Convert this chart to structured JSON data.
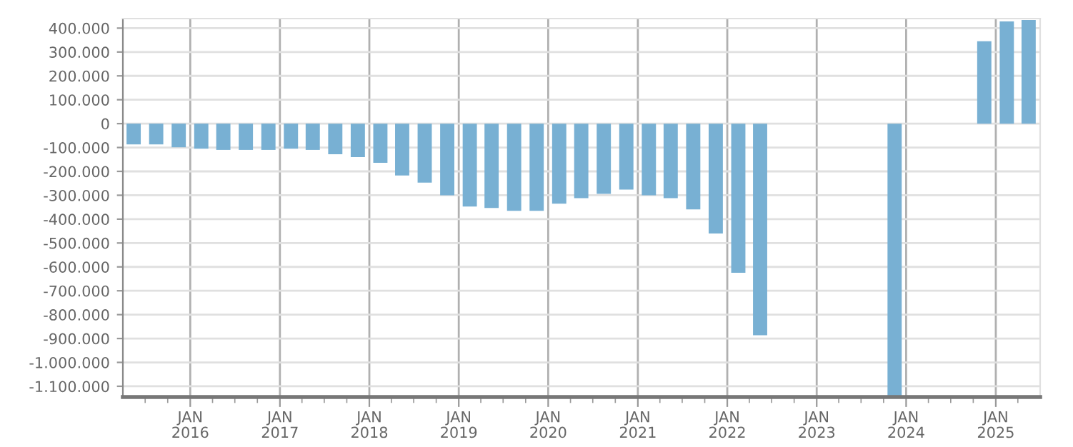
{
  "chart_data": {
    "type": "bar",
    "color": "#78b0d3",
    "grid": true,
    "x": [
      "2015-05-15",
      "2015-08-15",
      "2015-11-15",
      "2016-02-15",
      "2016-05-15",
      "2016-08-15",
      "2016-11-15",
      "2017-02-15",
      "2017-05-15",
      "2017-08-15",
      "2017-11-15",
      "2018-02-15",
      "2018-05-15",
      "2018-08-15",
      "2018-11-15",
      "2019-02-15",
      "2019-05-15",
      "2019-08-15",
      "2019-11-15",
      "2020-02-15",
      "2020-05-15",
      "2020-08-15",
      "2020-11-15",
      "2021-02-15",
      "2021-05-15",
      "2021-08-15",
      "2021-11-15",
      "2022-02-15",
      "2022-05-15",
      "2023-11-15",
      "2024-11-15",
      "2025-02-15",
      "2025-05-15"
    ],
    "values": [
      -87000,
      -87000,
      -99000,
      -105000,
      -110000,
      -110000,
      -110000,
      -105000,
      -110000,
      -128000,
      -140000,
      -164000,
      -217000,
      -247000,
      -300000,
      -347000,
      -353000,
      -365000,
      -365000,
      -335000,
      -312000,
      -294000,
      -276000,
      -300000,
      -312000,
      -359000,
      -460000,
      -625000,
      -886000,
      -1145000,
      345000,
      428000,
      434000
    ],
    "xlim": [
      "2015-04-01",
      "2025-07-01"
    ],
    "ylim": [
      -1145000,
      440000
    ],
    "xticks": [
      {
        "value": "2016-01-01",
        "label": "JAN\n2016"
      },
      {
        "value": "2017-01-01",
        "label": "JAN\n2017"
      },
      {
        "value": "2018-01-01",
        "label": "JAN\n2018"
      },
      {
        "value": "2019-01-01",
        "label": "JAN\n2019"
      },
      {
        "value": "2020-01-01",
        "label": "JAN\n2020"
      },
      {
        "value": "2021-01-01",
        "label": "JAN\n2021"
      },
      {
        "value": "2022-01-01",
        "label": "JAN\n2022"
      },
      {
        "value": "2023-01-01",
        "label": "JAN\n2023"
      },
      {
        "value": "2024-01-01",
        "label": "JAN\n2024"
      },
      {
        "value": "2025-01-01",
        "label": "JAN\n2025"
      },
      {
        "value": "2015-07-01",
        "label": null
      },
      {
        "value": "2015-10-01",
        "label": null
      },
      {
        "value": "2016-04-01",
        "label": null
      },
      {
        "value": "2016-07-01",
        "label": null
      },
      {
        "value": "2016-10-01",
        "label": null
      },
      {
        "value": "2017-04-01",
        "label": null
      },
      {
        "value": "2017-07-01",
        "label": null
      },
      {
        "value": "2017-10-01",
        "label": null
      },
      {
        "value": "2018-04-01",
        "label": null
      },
      {
        "value": "2018-07-01",
        "label": null
      },
      {
        "value": "2018-10-01",
        "label": null
      },
      {
        "value": "2019-04-01",
        "label": null
      },
      {
        "value": "2019-07-01",
        "label": null
      },
      {
        "value": "2019-10-01",
        "label": null
      },
      {
        "value": "2020-04-01",
        "label": null
      },
      {
        "value": "2020-07-01",
        "label": null
      },
      {
        "value": "2020-10-01",
        "label": null
      },
      {
        "value": "2021-04-01",
        "label": null
      },
      {
        "value": "2021-07-01",
        "label": null
      },
      {
        "value": "2021-10-01",
        "label": null
      },
      {
        "value": "2022-04-01",
        "label": null
      },
      {
        "value": "2022-07-01",
        "label": null
      },
      {
        "value": "2022-10-01",
        "label": null
      },
      {
        "value": "2023-04-01",
        "label": null
      },
      {
        "value": "2023-07-01",
        "label": null
      },
      {
        "value": "2023-10-01",
        "label": null
      },
      {
        "value": "2024-04-01",
        "label": null
      },
      {
        "value": "2024-07-01",
        "label": null
      },
      {
        "value": "2024-10-01",
        "label": null
      },
      {
        "value": "2025-04-01",
        "label": null
      }
    ],
    "yticks": [
      {
        "value": 400000,
        "label": "400.000"
      },
      {
        "value": 300000,
        "label": "300.000"
      },
      {
        "value": 200000,
        "label": "200.000"
      },
      {
        "value": 100000,
        "label": "100.000"
      },
      0,
      {
        "value": -100000,
        "label": "-100.000"
      },
      {
        "value": -200000,
        "label": "-200.000"
      },
      {
        "value": -300000,
        "label": "-300.000"
      },
      {
        "value": -400000,
        "label": "-400.000"
      },
      {
        "value": -500000,
        "label": "-500.000"
      },
      {
        "value": -600000,
        "label": "-600.000"
      },
      {
        "value": -700000,
        "label": "-700.000"
      },
      {
        "value": -800000,
        "label": "-800.000"
      },
      {
        "value": -900000,
        "label": "-900.000"
      },
      {
        "value": -1000000,
        "label": "-1.000.000"
      },
      {
        "value": -1100000,
        "label": "-1.100.000"
      }
    ]
  }
}
